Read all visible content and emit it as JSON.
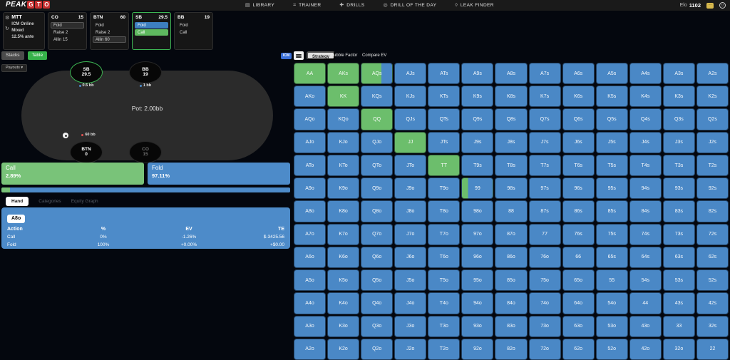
{
  "topbar": {
    "logo_peak": "PEAK",
    "logo_gto": [
      "G",
      "T",
      "O"
    ],
    "nav": [
      {
        "name": "library",
        "icon": "▤",
        "label": "LIBRARY"
      },
      {
        "name": "trainer",
        "icon": "⌗",
        "label": "TRAINER"
      },
      {
        "name": "drills",
        "icon": "✚",
        "label": "DRILLS"
      },
      {
        "name": "drill-of-the-day",
        "icon": "◎",
        "label": "DRILL OF THE DAY"
      },
      {
        "name": "leak-finder",
        "icon": "◊",
        "label": "LEAK FINDER"
      }
    ],
    "elo_label": "Elo",
    "elo_value": "1102"
  },
  "game_info": {
    "title": "MTT",
    "lines": [
      "ICM Online",
      "Mixed",
      "12.5% ante"
    ]
  },
  "players": [
    {
      "position": "CO",
      "stack": "15",
      "active": false,
      "actions": [
        {
          "label": "Fold",
          "state": "taken"
        },
        {
          "label": "Raise 2",
          "state": "none"
        },
        {
          "label": "Allin 15",
          "state": "none"
        }
      ]
    },
    {
      "position": "BTN",
      "stack": "60",
      "active": false,
      "actions": [
        {
          "label": "Fold",
          "state": "none"
        },
        {
          "label": "Raise 2",
          "state": "none"
        },
        {
          "label": "Allin 60",
          "state": "taken"
        }
      ]
    },
    {
      "position": "SB",
      "stack": "29.5",
      "active": true,
      "actions": [
        {
          "label": "Fold",
          "state": "fold"
        },
        {
          "label": "Call",
          "state": "call"
        }
      ]
    },
    {
      "position": "BB",
      "stack": "19",
      "active": false,
      "actions": [
        {
          "label": "Fold",
          "state": "none"
        },
        {
          "label": "Call",
          "state": "none"
        }
      ]
    }
  ],
  "table_panel": {
    "tabs": [
      {
        "label": "Stacks",
        "active": false
      },
      {
        "label": "Table",
        "active": true
      }
    ],
    "payouts_label": "Payouts ▾",
    "pot_label": "Pot: 2.00bb",
    "seats": [
      {
        "position": "SB",
        "stack": "29.5",
        "bet": "0.5 bb",
        "bet_color": "#4d8bc9",
        "active": true,
        "folded": false,
        "dealer": false
      },
      {
        "position": "BB",
        "stack": "19",
        "bet": "1 bb",
        "bet_color": "#4d8bc9",
        "active": false,
        "folded": false,
        "dealer": false
      },
      {
        "position": "BTN",
        "stack": "0",
        "bet": "60 bb",
        "bet_color": "#e05252",
        "active": false,
        "folded": false,
        "dealer": true
      },
      {
        "position": "CO",
        "stack": "15",
        "bet": "",
        "bet_color": "",
        "active": false,
        "folded": true,
        "dealer": false
      }
    ]
  },
  "strategy_bars": [
    {
      "label": "Call",
      "pct": "2.89%",
      "value": 2.89,
      "color": "#79c379"
    },
    {
      "label": "Fold",
      "pct": "97.11%",
      "value": 97.11,
      "color": "#4d8bc9"
    }
  ],
  "detail_tabs": [
    {
      "label": "Hand",
      "active": true
    },
    {
      "label": "Categories",
      "active": false
    },
    {
      "label": "Equity Graph",
      "active": false
    }
  ],
  "hand_detail": {
    "hand": "A8o",
    "columns": [
      "Action",
      "%",
      "EV",
      "TE"
    ],
    "rows": [
      [
        "Call",
        "0%",
        "-1.26%",
        "$-3425.56"
      ],
      [
        "Fold",
        "100%",
        "+0.00%",
        "+$0.00"
      ]
    ]
  },
  "grid_header": {
    "icm_badge": "ICM",
    "strategy_label": "Strategy",
    "bubble_factor_label": "Bubble Factor",
    "compare_ev_label": "Compare EV"
  },
  "range_grid": {
    "call_color": "#6cbe6c",
    "fold_color": "#4a88c6",
    "rows": [
      [
        [
          "AA",
          100
        ],
        [
          "AKs",
          100
        ],
        [
          "AQs",
          65
        ],
        [
          "AJs",
          0
        ],
        [
          "ATs",
          0
        ],
        [
          "A9s",
          0
        ],
        [
          "A8s",
          0
        ],
        [
          "A7s",
          0
        ],
        [
          "A6s",
          0
        ],
        [
          "A5s",
          0
        ],
        [
          "A4s",
          0
        ],
        [
          "A3s",
          0
        ],
        [
          "A2s",
          0
        ]
      ],
      [
        [
          "AKo",
          0
        ],
        [
          "KK",
          100
        ],
        [
          "KQs",
          0
        ],
        [
          "KJs",
          0
        ],
        [
          "KTs",
          0
        ],
        [
          "K9s",
          0
        ],
        [
          "K8s",
          0
        ],
        [
          "K7s",
          0
        ],
        [
          "K6s",
          0
        ],
        [
          "K5s",
          0
        ],
        [
          "K4s",
          0
        ],
        [
          "K3s",
          0
        ],
        [
          "K2s",
          0
        ]
      ],
      [
        [
          "AQo",
          0
        ],
        [
          "KQo",
          0
        ],
        [
          "QQ",
          100
        ],
        [
          "QJs",
          0
        ],
        [
          "QTs",
          0
        ],
        [
          "Q9s",
          0
        ],
        [
          "Q8s",
          0
        ],
        [
          "Q7s",
          0
        ],
        [
          "Q6s",
          0
        ],
        [
          "Q5s",
          0
        ],
        [
          "Q4s",
          0
        ],
        [
          "Q3s",
          0
        ],
        [
          "Q2s",
          0
        ]
      ],
      [
        [
          "AJo",
          0
        ],
        [
          "KJo",
          0
        ],
        [
          "QJo",
          0
        ],
        [
          "JJ",
          100
        ],
        [
          "JTs",
          0
        ],
        [
          "J9s",
          0
        ],
        [
          "J8s",
          0
        ],
        [
          "J7s",
          0
        ],
        [
          "J6s",
          0
        ],
        [
          "J5s",
          0
        ],
        [
          "J4s",
          0
        ],
        [
          "J3s",
          0
        ],
        [
          "J2s",
          0
        ]
      ],
      [
        [
          "ATo",
          0
        ],
        [
          "KTo",
          0
        ],
        [
          "QTo",
          0
        ],
        [
          "JTo",
          0
        ],
        [
          "TT",
          100
        ],
        [
          "T9s",
          0
        ],
        [
          "T8s",
          0
        ],
        [
          "T7s",
          0
        ],
        [
          "T6s",
          0
        ],
        [
          "T5s",
          0
        ],
        [
          "T4s",
          0
        ],
        [
          "T3s",
          0
        ],
        [
          "T2s",
          0
        ]
      ],
      [
        [
          "A9o",
          0
        ],
        [
          "K9o",
          0
        ],
        [
          "Q9o",
          0
        ],
        [
          "J9o",
          0
        ],
        [
          "T9o",
          0
        ],
        [
          "99",
          20
        ],
        [
          "98s",
          0
        ],
        [
          "97s",
          0
        ],
        [
          "96s",
          0
        ],
        [
          "95s",
          0
        ],
        [
          "94s",
          0
        ],
        [
          "93s",
          0
        ],
        [
          "92s",
          0
        ]
      ],
      [
        [
          "A8o",
          0
        ],
        [
          "K8o",
          0
        ],
        [
          "Q8o",
          0
        ],
        [
          "J8o",
          0
        ],
        [
          "T8o",
          0
        ],
        [
          "98o",
          0
        ],
        [
          "88",
          0
        ],
        [
          "87s",
          0
        ],
        [
          "86s",
          0
        ],
        [
          "85s",
          0
        ],
        [
          "84s",
          0
        ],
        [
          "83s",
          0
        ],
        [
          "82s",
          0
        ]
      ],
      [
        [
          "A7o",
          0
        ],
        [
          "K7o",
          0
        ],
        [
          "Q7o",
          0
        ],
        [
          "J7o",
          0
        ],
        [
          "T7o",
          0
        ],
        [
          "97o",
          0
        ],
        [
          "87o",
          0
        ],
        [
          "77",
          0
        ],
        [
          "76s",
          0
        ],
        [
          "75s",
          0
        ],
        [
          "74s",
          0
        ],
        [
          "73s",
          0
        ],
        [
          "72s",
          0
        ]
      ],
      [
        [
          "A6o",
          0
        ],
        [
          "K6o",
          0
        ],
        [
          "Q6o",
          0
        ],
        [
          "J6o",
          0
        ],
        [
          "T6o",
          0
        ],
        [
          "96o",
          0
        ],
        [
          "86o",
          0
        ],
        [
          "76o",
          0
        ],
        [
          "66",
          0
        ],
        [
          "65s",
          0
        ],
        [
          "64s",
          0
        ],
        [
          "63s",
          0
        ],
        [
          "62s",
          0
        ]
      ],
      [
        [
          "A5o",
          0
        ],
        [
          "K5o",
          0
        ],
        [
          "Q5o",
          0
        ],
        [
          "J5o",
          0
        ],
        [
          "T5o",
          0
        ],
        [
          "95o",
          0
        ],
        [
          "85o",
          0
        ],
        [
          "75o",
          0
        ],
        [
          "65o",
          0
        ],
        [
          "55",
          0
        ],
        [
          "54s",
          0
        ],
        [
          "53s",
          0
        ],
        [
          "52s",
          0
        ]
      ],
      [
        [
          "A4o",
          0
        ],
        [
          "K4o",
          0
        ],
        [
          "Q4o",
          0
        ],
        [
          "J4o",
          0
        ],
        [
          "T4o",
          0
        ],
        [
          "94o",
          0
        ],
        [
          "84o",
          0
        ],
        [
          "74o",
          0
        ],
        [
          "64o",
          0
        ],
        [
          "54o",
          0
        ],
        [
          "44",
          0
        ],
        [
          "43s",
          0
        ],
        [
          "42s",
          0
        ]
      ],
      [
        [
          "A3o",
          0
        ],
        [
          "K3o",
          0
        ],
        [
          "Q3o",
          0
        ],
        [
          "J3o",
          0
        ],
        [
          "T3o",
          0
        ],
        [
          "93o",
          0
        ],
        [
          "83o",
          0
        ],
        [
          "73o",
          0
        ],
        [
          "63o",
          0
        ],
        [
          "53o",
          0
        ],
        [
          "43o",
          0
        ],
        [
          "33",
          0
        ],
        [
          "32s",
          0
        ]
      ],
      [
        [
          "A2o",
          0
        ],
        [
          "K2o",
          0
        ],
        [
          "Q2o",
          0
        ],
        [
          "J2o",
          0
        ],
        [
          "T2o",
          0
        ],
        [
          "92o",
          0
        ],
        [
          "82o",
          0
        ],
        [
          "72o",
          0
        ],
        [
          "62o",
          0
        ],
        [
          "52o",
          0
        ],
        [
          "42o",
          0
        ],
        [
          "32o",
          0
        ],
        [
          "22",
          0
        ]
      ]
    ]
  }
}
